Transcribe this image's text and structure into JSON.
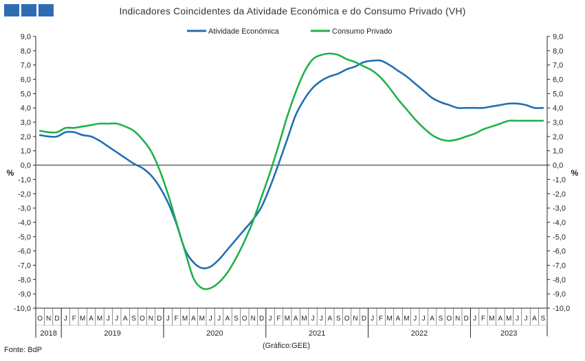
{
  "title": "Indicadores Coincidentes da Atividade Económica e do Consumo Privado (VH)",
  "source": "Fonte: BdP",
  "note": "(Gráfico:GEE)",
  "colors": {
    "series1": "#1f6eb5",
    "series2": "#1fb04b",
    "brand": "#2e6db4"
  },
  "chart_data": {
    "type": "line",
    "title": "Indicadores Coincidentes da Atividade Económica e do Consumo Privado (VH)",
    "ylabel_left": "%",
    "ylabel_right": "%",
    "ylim": [
      -10,
      9
    ],
    "yticks": [
      "9,0",
      "8,0",
      "7,0",
      "6,0",
      "5,0",
      "4,0",
      "3,0",
      "2,0",
      "1,0",
      "0,0",
      "-1,0",
      "-2,0",
      "-3,0",
      "-4,0",
      "-5,0",
      "-6,0",
      "-7,0",
      "-8,0",
      "-9,0",
      "-10,0"
    ],
    "grid": false,
    "legend_position": "top-center",
    "x": [
      "O",
      "N",
      "D",
      "J",
      "F",
      "M",
      "A",
      "M",
      "J",
      "J",
      "A",
      "S",
      "O",
      "N",
      "D",
      "J",
      "F",
      "M",
      "A",
      "M",
      "J",
      "J",
      "A",
      "S",
      "O",
      "N",
      "D",
      "J",
      "F",
      "M",
      "A",
      "M",
      "J",
      "J",
      "A",
      "S",
      "O",
      "N",
      "D",
      "J",
      "F",
      "M",
      "A",
      "M",
      "J",
      "J",
      "A",
      "S",
      "O",
      "N",
      "D",
      "J",
      "F",
      "M",
      "A",
      "M",
      "J",
      "J",
      "A",
      "S"
    ],
    "years": [
      {
        "label": "2018",
        "start": 0,
        "count": 3
      },
      {
        "label": "2019",
        "start": 3,
        "count": 12
      },
      {
        "label": "2020",
        "start": 15,
        "count": 12
      },
      {
        "label": "2021",
        "start": 27,
        "count": 12
      },
      {
        "label": "2022",
        "start": 39,
        "count": 12
      },
      {
        "label": "2023",
        "start": 51,
        "count": 9
      }
    ],
    "series": [
      {
        "name": "Atividade Económica",
        "values": [
          2.1,
          2.0,
          2.0,
          2.3,
          2.3,
          2.1,
          2.0,
          1.7,
          1.3,
          0.9,
          0.5,
          0.1,
          -0.2,
          -0.7,
          -1.5,
          -2.6,
          -4.1,
          -5.9,
          -6.8,
          -7.2,
          -7.1,
          -6.6,
          -5.9,
          -5.2,
          -4.5,
          -3.8,
          -2.9,
          -1.5,
          0.1,
          1.8,
          3.5,
          4.6,
          5.4,
          5.9,
          6.2,
          6.4,
          6.7,
          6.9,
          7.2,
          7.3,
          7.3,
          7.0,
          6.6,
          6.2,
          5.7,
          5.2,
          4.7,
          4.4,
          4.2,
          4.0,
          4.0,
          4.0,
          4.0,
          4.1,
          4.2,
          4.3,
          4.3,
          4.2,
          4.0,
          4.0
        ]
      },
      {
        "name": "Consumo Privado",
        "values": [
          2.4,
          2.3,
          2.3,
          2.6,
          2.6,
          2.7,
          2.8,
          2.9,
          2.9,
          2.9,
          2.7,
          2.4,
          1.8,
          1.0,
          -0.3,
          -2.0,
          -4.0,
          -6.0,
          -7.9,
          -8.6,
          -8.6,
          -8.2,
          -7.5,
          -6.5,
          -5.3,
          -3.9,
          -2.2,
          -0.5,
          1.4,
          3.4,
          5.1,
          6.5,
          7.4,
          7.7,
          7.8,
          7.7,
          7.4,
          7.2,
          6.9,
          6.6,
          6.1,
          5.4,
          4.6,
          3.9,
          3.2,
          2.6,
          2.1,
          1.8,
          1.7,
          1.8,
          2.0,
          2.2,
          2.5,
          2.7,
          2.9,
          3.1,
          3.1,
          3.1,
          3.1,
          3.1
        ]
      }
    ]
  }
}
